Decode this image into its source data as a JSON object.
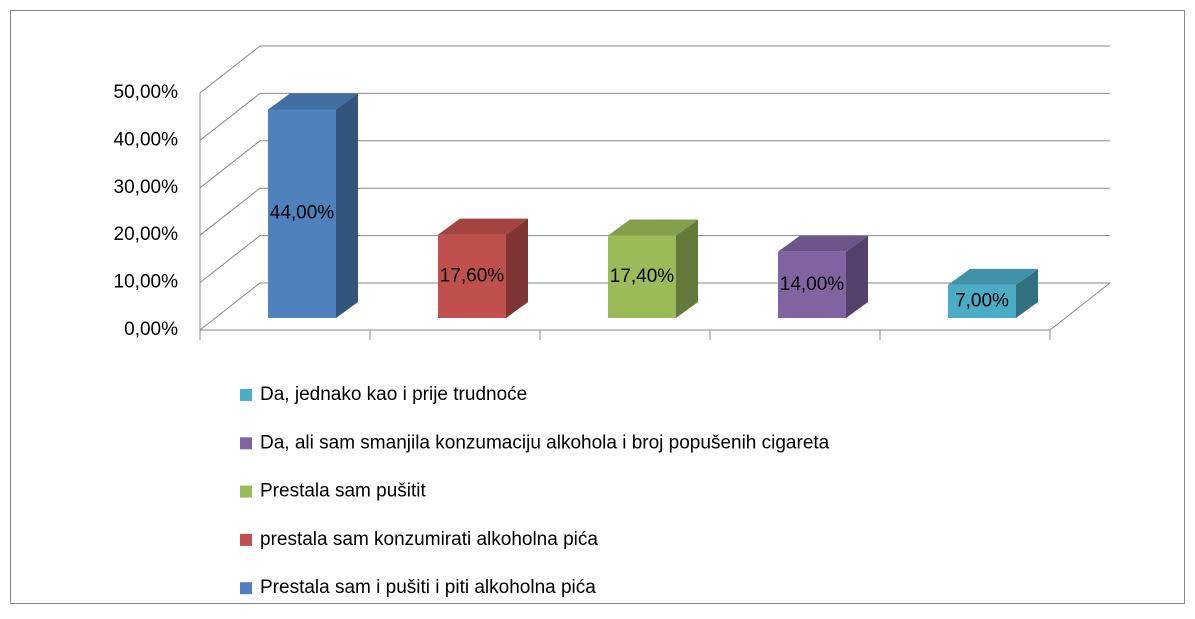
{
  "chart_data": {
    "type": "bar3d",
    "series": [
      {
        "name": "Prestala sam i pušiti i piti alkoholna pića",
        "color": "#4f81bd",
        "values": [
          44
        ],
        "value_labels": [
          "44,00%"
        ]
      },
      {
        "name": "prestala sam konzumirati alkoholna pića",
        "color": "#c0504d",
        "values": [
          17.6
        ],
        "value_labels": [
          "17,60%"
        ]
      },
      {
        "name": "Prestala sam pušitit",
        "color": "#9bbb59",
        "values": [
          17.4
        ],
        "value_labels": [
          "17,40%"
        ]
      },
      {
        "name": "Da, ali sam smanjila konzumaciju alkohola i broj popušenih cigareta",
        "color": "#8064a2",
        "values": [
          14
        ],
        "value_labels": [
          "14,00%"
        ]
      },
      {
        "name": "Da, jednako kao i prije trudnoće",
        "color": "#4bacc6",
        "values": [
          7
        ],
        "value_labels": [
          "7,00%"
        ]
      }
    ],
    "ylim": [
      0,
      50
    ],
    "yticks": [
      {
        "value": 0,
        "label": "0,00%"
      },
      {
        "value": 10,
        "label": "10,00%"
      },
      {
        "value": 20,
        "label": "20,00%"
      },
      {
        "value": 30,
        "label": "30,00%"
      },
      {
        "value": 40,
        "label": "40,00%"
      },
      {
        "value": 50,
        "label": "50,00%"
      }
    ],
    "grid": true,
    "legend": "bottom"
  }
}
